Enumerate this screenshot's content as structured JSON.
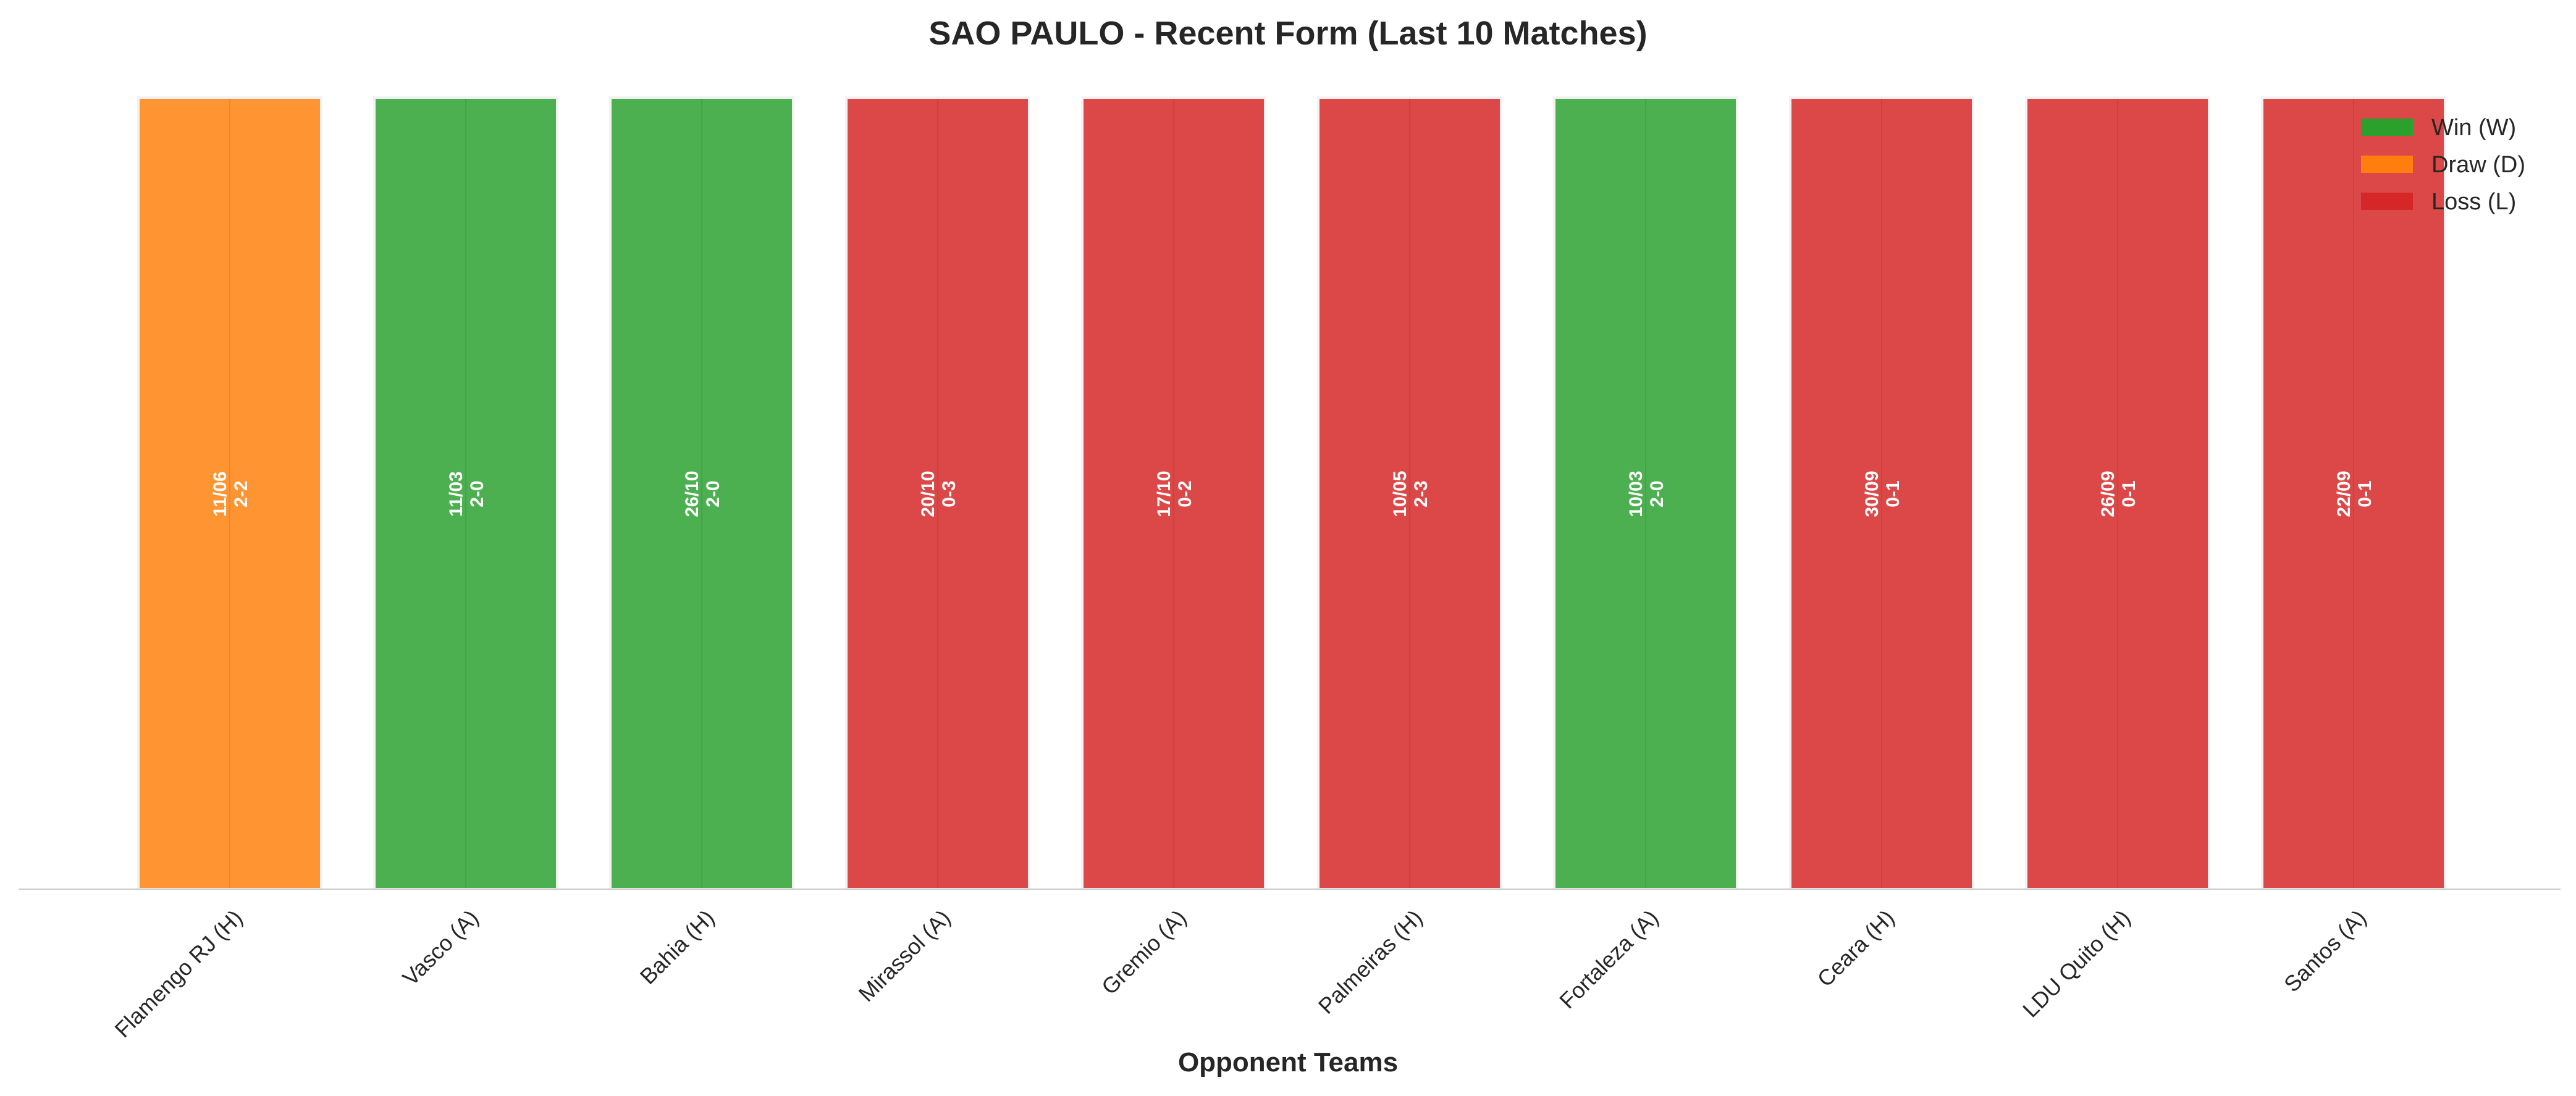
{
  "chart_data": {
    "type": "bar",
    "title": "SAO PAULO - Recent Form (Last 10 Matches)",
    "xlabel": "Opponent Teams",
    "ylabel": "",
    "categories": [
      "Flamengo RJ (H)",
      "Vasco (A)",
      "Bahia (H)",
      "Mirassol (A)",
      "Gremio (A)",
      "Palmeiras (H)",
      "Fortaleza (A)",
      "Ceara (H)",
      "LDU Quito (H)",
      "Santos (A)"
    ],
    "values": [
      1,
      1,
      1,
      1,
      1,
      1,
      1,
      1,
      1,
      1
    ],
    "results": [
      "D",
      "W",
      "W",
      "L",
      "L",
      "L",
      "W",
      "L",
      "L",
      "L"
    ],
    "dates": [
      "11/06",
      "11/03",
      "26/10",
      "20/10",
      "17/10",
      "10/05",
      "10/03",
      "30/09",
      "26/09",
      "22/09"
    ],
    "scores": [
      "2-2",
      "2-0",
      "2-0",
      "0-3",
      "0-2",
      "2-3",
      "2-0",
      "0-1",
      "0-1",
      "0-1"
    ],
    "ylim": [
      0,
      1
    ],
    "grid": false,
    "legend": {
      "placement": "top-right",
      "entries": [
        {
          "key": "W",
          "label": "Win (W)"
        },
        {
          "key": "D",
          "label": "Draw (D)"
        },
        {
          "key": "L",
          "label": "Loss (L)"
        }
      ]
    },
    "colors": {
      "W": "#4caf50",
      "D": "#ff9433",
      "L": "#dc4848",
      "W_legend": "#2ca02c",
      "D_legend": "#ff7f0e",
      "L_legend": "#d62728",
      "bar_edge": "#f2f2f2",
      "axis": "#cccccc",
      "text": "#262626",
      "bar_text": "#ffffff"
    }
  }
}
